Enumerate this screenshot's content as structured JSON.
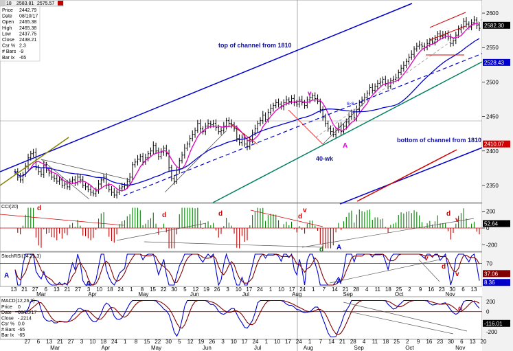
{
  "header": {
    "symbol": "18",
    "values": [
      "2583.81",
      "2575.57"
    ]
  },
  "info_box": {
    "rows": [
      {
        "k": "Price",
        "v": "2442.79"
      },
      {
        "k": "Date",
        "v": "08/10/17"
      },
      {
        "k": "Open",
        "v": "2465.38"
      },
      {
        "k": "High",
        "v": "2465.38"
      },
      {
        "k": "Low",
        "v": "2437.75"
      },
      {
        "k": "Close",
        "v": "2438.21"
      },
      {
        "k": "Csr %",
        "v": "2.3"
      },
      {
        "k": "# Bars",
        "v": "-9"
      },
      {
        "k": "Bar Ix",
        "v": "-65"
      }
    ]
  },
  "macd_info": {
    "rows": [
      {
        "k": "Price",
        "v": "0"
      },
      {
        "k": "Date",
        "v": "08/10/17"
      },
      {
        "k": "Close",
        "v": "-.2214"
      },
      {
        "k": "Csr %",
        "v": "0.0"
      },
      {
        "k": "# Bars",
        "v": "-65"
      },
      {
        "k": "Bar Ix",
        "v": "-65"
      }
    ]
  },
  "annotations": {
    "top_channel": "top of channel from 1810",
    "bottom_channel": "bottom of channel from 1810",
    "forty_wk": "40-wk",
    "d": "d",
    "v": "v",
    "A": "A",
    "sqq": "s-s"
  },
  "colors": {
    "price_bar": "#000000",
    "ma_short": "#e000c0",
    "ma_long": "#0000cc",
    "channel": "#0000cc",
    "green_line": "#008060",
    "red_line": "#d00000",
    "olive_line": "#808000"
  },
  "chart_data": [
    {
      "type": "line",
      "name_panel": "price",
      "y_ticks": [
        2350,
        2400,
        2450,
        2500,
        2550,
        2600
      ],
      "ylim": [
        2330,
        2615
      ],
      "price_tags": [
        {
          "label": "2582.30",
          "value": 2582.3,
          "color": "#000000"
        },
        {
          "label": "2528.43",
          "value": 2528.43,
          "color": "#0000cc"
        },
        {
          "label": "2410.07",
          "value": 2410.07,
          "color": "#d00000"
        }
      ],
      "closes": [
        2370,
        2362,
        2358,
        2366,
        2378,
        2390,
        2396,
        2398,
        2376,
        2370,
        2366,
        2380,
        2372,
        2368,
        2362,
        2360,
        2356,
        2358,
        2350,
        2352,
        2348,
        2356,
        2358,
        2354,
        2362,
        2358,
        2350,
        2348,
        2344,
        2340,
        2338,
        2342,
        2352,
        2358,
        2362,
        2350,
        2344,
        2340,
        2336,
        2340,
        2346,
        2348,
        2350,
        2356,
        2362,
        2380,
        2384,
        2388,
        2392,
        2384,
        2390,
        2396,
        2400,
        2408,
        2400,
        2392,
        2398,
        2404,
        2396,
        2376,
        2360,
        2356,
        2372,
        2386,
        2394,
        2404,
        2410,
        2418,
        2424,
        2430,
        2440,
        2432,
        2428,
        2436,
        2440,
        2438,
        2440,
        2434,
        2428,
        2430,
        2436,
        2444,
        2440,
        2438,
        2432,
        2418,
        2412,
        2420,
        2410,
        2406,
        2416,
        2426,
        2432,
        2440,
        2444,
        2452,
        2446,
        2456,
        2462,
        2466,
        2470,
        2468,
        2464,
        2470,
        2474,
        2472,
        2476,
        2470,
        2468,
        2474,
        2470,
        2466,
        2474,
        2478,
        2480,
        2476,
        2472,
        2460,
        2448,
        2440,
        2432,
        2428,
        2424,
        2430,
        2436,
        2428,
        2436,
        2442,
        2450,
        2456,
        2448,
        2460,
        2470,
        2474,
        2478,
        2484,
        2492,
        2488,
        2494,
        2498,
        2500,
        2504,
        2498,
        2494,
        2502,
        2504,
        2506,
        2514,
        2520,
        2524,
        2530,
        2536,
        2540,
        2548,
        2552,
        2554,
        2552,
        2550,
        2556,
        2560,
        2558,
        2562,
        2570,
        2566,
        2568,
        2570,
        2564,
        2556,
        2560,
        2568,
        2576,
        2580,
        2588,
        2584,
        2580,
        2586,
        2590,
        2582,
        2578
      ]
    },
    {
      "type": "bar",
      "name_panel": "CCI(20)",
      "title": "CCI(20)",
      "y_ticks": [
        200,
        0,
        -200
      ],
      "ylim": [
        -260,
        260
      ],
      "value_tag": {
        "label": "52.64",
        "value": 52.64
      }
    },
    {
      "type": "line",
      "name_panel": "StochRSI(14,21,3)",
      "title": "StochRSI(14,21,3)",
      "y_ticks": [
        70,
        37.06,
        8.36
      ],
      "ylim": [
        0,
        100
      ],
      "value_tags": [
        {
          "label": "37.06",
          "value": 37.06,
          "color": "#800000"
        },
        {
          "label": "8.36",
          "value": 8.36,
          "color": "#0000cc"
        }
      ]
    },
    {
      "type": "line",
      "name_panel": "MACD(12,26,9)",
      "title": "MACD(12,26,9)",
      "y_ticks": [
        0,
        -116.01,
        -200
      ],
      "ylim": [
        -260,
        120
      ],
      "value_tag": {
        "label": "-116.01",
        "value": -116.01
      }
    }
  ],
  "x_axis_top": {
    "days": [
      "13",
      "21",
      "27",
      "6",
      "13",
      "21",
      "27",
      "3",
      "10",
      "18",
      "24",
      "1",
      "8",
      "15",
      "22",
      "30",
      "5",
      "12",
      "19",
      "26",
      "3",
      "10",
      "17",
      "24",
      "1",
      "10",
      "17",
      "24",
      "1",
      "7",
      "14",
      "21",
      "28",
      "4",
      "11",
      "18",
      "25",
      "2",
      "9",
      "16",
      "23",
      "30",
      "6",
      "13"
    ],
    "months": [
      "Mar",
      "Apr",
      "May",
      "Jun",
      "Jul",
      "Aug",
      "Sep",
      "Oct",
      "Nov"
    ]
  },
  "x_axis_bottom": {
    "days": [
      "27",
      "6",
      "13",
      "21",
      "27",
      "3",
      "10",
      "18",
      "24",
      "1",
      "8",
      "15",
      "22",
      "30",
      "5",
      "12",
      "19",
      "26",
      "3",
      "10",
      "17",
      "24",
      "1",
      "10",
      "17",
      "24",
      "1",
      "7",
      "14",
      "21",
      "28",
      "4",
      "11",
      "18",
      "25",
      "2",
      "9",
      "16",
      "23",
      "30",
      "6",
      "13",
      "20"
    ],
    "months": [
      "Mar",
      "Apr",
      "May",
      "Jun",
      "Jul",
      "Aug",
      "Sep",
      "Oct",
      "Nov"
    ]
  }
}
